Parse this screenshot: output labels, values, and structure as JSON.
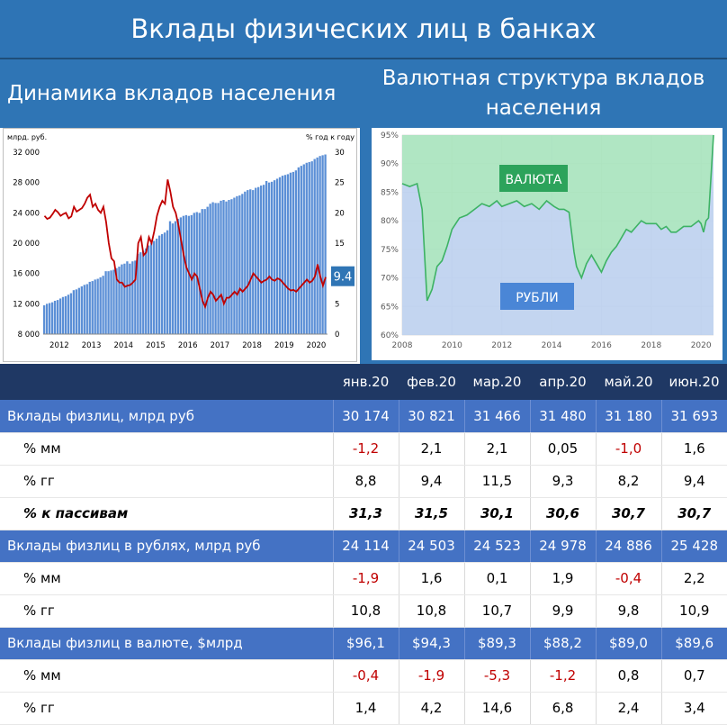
{
  "header": {
    "title": "Вклады физических лиц в банках"
  },
  "left_panel": {
    "title": "Динамика вкладов населения"
  },
  "right_panel": {
    "title": "Валютная структура вкладов населения"
  },
  "colors": {
    "bar": "#5b8fd6",
    "line": "#c00000",
    "green_fill": "#a7e3bd",
    "green_line": "#3db264",
    "blue_fill": "#bdd0ee",
    "label_green": "#2ca35b",
    "label_blue": "#4a86d6",
    "header_blue": "#2f75b5",
    "table_header": "#1f3864",
    "table_highlight": "#4472c4"
  },
  "chart_data": [
    {
      "type": "bar+line",
      "ylabel_left": "млрд. руб.",
      "ylabel_right": "% год к году",
      "left_ticks": [
        "8 000",
        "12 000",
        "16 000",
        "20 000",
        "24 000",
        "28 000",
        "32 000"
      ],
      "right_ticks": [
        "0",
        "5",
        "10",
        "15",
        "20",
        "25",
        "30"
      ],
      "x_ticks": [
        "2012",
        "2013",
        "2014",
        "2015",
        "2016",
        "2017",
        "2018",
        "2019",
        "2020"
      ],
      "ylim_left": [
        8000,
        32000
      ],
      "ylim_right": [
        0,
        30
      ],
      "last_value_label": "9.4",
      "bars": {
        "x_start": 2012.0,
        "x_step": 0.08333,
        "values": [
          11800,
          12000,
          12100,
          12200,
          12400,
          12500,
          12700,
          12900,
          13000,
          13200,
          13400,
          13800,
          13900,
          14100,
          14300,
          14500,
          14600,
          14900,
          15000,
          15200,
          15300,
          15500,
          15700,
          16300,
          16300,
          16400,
          16500,
          16700,
          16900,
          17200,
          17300,
          17600,
          17300,
          17600,
          17700,
          18600,
          18800,
          19000,
          19300,
          19700,
          20000,
          20300,
          20600,
          21000,
          21200,
          21400,
          21700,
          22900,
          22600,
          22900,
          23200,
          23400,
          23600,
          23700,
          23600,
          23700,
          24000,
          24100,
          24000,
          24500,
          24500,
          24800,
          25200,
          25400,
          25300,
          25300,
          25600,
          25700,
          25500,
          25700,
          25800,
          26000,
          26200,
          26300,
          26500,
          26800,
          27000,
          27100,
          27000,
          27300,
          27400,
          27600,
          27700,
          28200,
          28000,
          28100,
          28300,
          28500,
          28700,
          28900,
          29000,
          29100,
          29300,
          29400,
          29600,
          30000,
          30200,
          30400,
          30600,
          30700,
          30800,
          31100,
          31300,
          31500,
          31600,
          31700
        ]
      },
      "line": {
        "x_start": 2012.0,
        "x_step": 0.08333,
        "values": [
          19.5,
          19.0,
          19.2,
          19.8,
          20.5,
          20.1,
          19.5,
          19.8,
          20.0,
          19.1,
          19.4,
          21.0,
          20.2,
          20.5,
          20.8,
          21.5,
          22.5,
          23.0,
          21.0,
          21.5,
          20.5,
          20.0,
          21.0,
          18.5,
          15.0,
          12.5,
          12.0,
          9.0,
          8.5,
          8.5,
          7.8,
          8.0,
          8.1,
          8.5,
          9.0,
          15.0,
          16.0,
          13.0,
          13.5,
          16.0,
          15.0,
          17.0,
          19.5,
          21.0,
          22.0,
          21.5,
          25.5,
          23.5,
          21.0,
          20.0,
          18.0,
          15.5,
          13.0,
          11.0,
          10.0,
          9.0,
          10.0,
          9.5,
          7.5,
          5.5,
          4.5,
          6.0,
          7.0,
          6.5,
          5.5,
          6.0,
          6.5,
          5.0,
          6.0,
          6.0,
          6.5,
          7.0,
          6.5,
          7.5,
          7.0,
          7.5,
          8.0,
          9.0,
          10.0,
          9.5,
          9.0,
          8.5,
          8.8,
          9.0,
          9.5,
          9.0,
          8.8,
          9.2,
          9.0,
          8.5,
          8.0,
          7.5,
          7.2,
          7.3,
          7.0,
          7.5,
          8.0,
          8.5,
          9.0,
          8.5,
          8.8,
          9.5,
          11.5,
          9.5,
          8.0,
          9.4
        ]
      }
    },
    {
      "type": "area",
      "y_ticks": [
        "60%",
        "65%",
        "70%",
        "75%",
        "80%",
        "85%",
        "90%",
        "95%"
      ],
      "x_ticks": [
        "2008",
        "2010",
        "2012",
        "2014",
        "2016",
        "2018",
        "2020"
      ],
      "ylim": [
        60,
        95
      ],
      "xlim": [
        2008,
        2020.5
      ],
      "series_labels": [
        "ВАЛЮТА",
        "РУБЛИ"
      ],
      "rubles_share": {
        "x": [
          2008.0,
          2008.3,
          2008.6,
          2008.8,
          2009.0,
          2009.2,
          2009.4,
          2009.6,
          2009.8,
          2010.0,
          2010.3,
          2010.6,
          2010.9,
          2011.2,
          2011.5,
          2011.8,
          2012.0,
          2012.3,
          2012.6,
          2012.9,
          2013.2,
          2013.5,
          2013.8,
          2014.1,
          2014.3,
          2014.5,
          2014.7,
          2014.8,
          2014.9,
          2015.0,
          2015.2,
          2015.4,
          2015.6,
          2015.8,
          2016.0,
          2016.2,
          2016.4,
          2016.6,
          2016.8,
          2017.0,
          2017.2,
          2017.4,
          2017.6,
          2017.8,
          2018.0,
          2018.2,
          2018.4,
          2018.6,
          2018.8,
          2019.0,
          2019.3,
          2019.6,
          2019.9,
          2020.0,
          2020.1,
          2020.2,
          2020.3,
          2020.5
        ],
        "values": [
          86.5,
          86.0,
          86.5,
          82.0,
          66.0,
          68.0,
          72.0,
          73.0,
          75.5,
          78.5,
          80.5,
          81.0,
          82.0,
          83.0,
          82.5,
          83.5,
          82.5,
          83.0,
          83.5,
          82.5,
          83.0,
          82.0,
          83.5,
          82.5,
          82.0,
          82.0,
          81.5,
          78.0,
          74.5,
          72.0,
          70.0,
          72.5,
          74.0,
          72.5,
          71.0,
          73.0,
          74.5,
          75.5,
          77.0,
          78.5,
          78.0,
          79.0,
          80.0,
          79.5,
          79.5,
          79.5,
          78.5,
          79.0,
          78.0,
          78.0,
          79.0,
          79.0,
          80.0,
          79.5,
          78.0,
          80.0,
          80.5,
          95.0
        ]
      }
    }
  ],
  "table": {
    "columns": [
      "янв.20",
      "фев.20",
      "мар.20",
      "апр.20",
      "май.20",
      "июн.20"
    ],
    "rows": [
      {
        "label": "Вклады физлиц, млрд руб",
        "values": [
          "30 174",
          "30 821",
          "31 466",
          "31 480",
          "31 180",
          "31 693"
        ],
        "style": "hl"
      },
      {
        "label": "% мм",
        "values": [
          "-1,2",
          "2,1",
          "2,1",
          "0,05",
          "-1,0",
          "1,6"
        ],
        "style": "sub"
      },
      {
        "label": "% гг",
        "values": [
          "8,8",
          "9,4",
          "11,5",
          "9,3",
          "8,2",
          "9,4"
        ],
        "style": "sub"
      },
      {
        "label": "% к пассивам",
        "values": [
          "31,3",
          "31,5",
          "30,1",
          "30,6",
          "30,7",
          "30,7"
        ],
        "style": "ital"
      },
      {
        "label": "Вклады физлиц в рублях, млрд руб",
        "values": [
          "24 114",
          "24 503",
          "24 523",
          "24 978",
          "24 886",
          "25 428"
        ],
        "style": "hl"
      },
      {
        "label": "% мм",
        "values": [
          "-1,9",
          "1,6",
          "0,1",
          "1,9",
          "-0,4",
          "2,2"
        ],
        "style": "sub"
      },
      {
        "label": "% гг",
        "values": [
          "10,8",
          "10,8",
          "10,7",
          "9,9",
          "9,8",
          "10,9"
        ],
        "style": "sub"
      },
      {
        "label": "Вклады физлиц в валюте, $млрд",
        "values": [
          "$96,1",
          "$94,3",
          "$89,3",
          "$88,2",
          "$89,0",
          "$89,6"
        ],
        "style": "hl"
      },
      {
        "label": "% мм",
        "values": [
          "-0,4",
          "-1,9",
          "-5,3",
          "-1,2",
          "0,8",
          "0,7"
        ],
        "style": "sub"
      },
      {
        "label": "% гг",
        "values": [
          "1,4",
          "4,2",
          "14,6",
          "6,8",
          "2,4",
          "3,4"
        ],
        "style": "sub"
      }
    ]
  }
}
